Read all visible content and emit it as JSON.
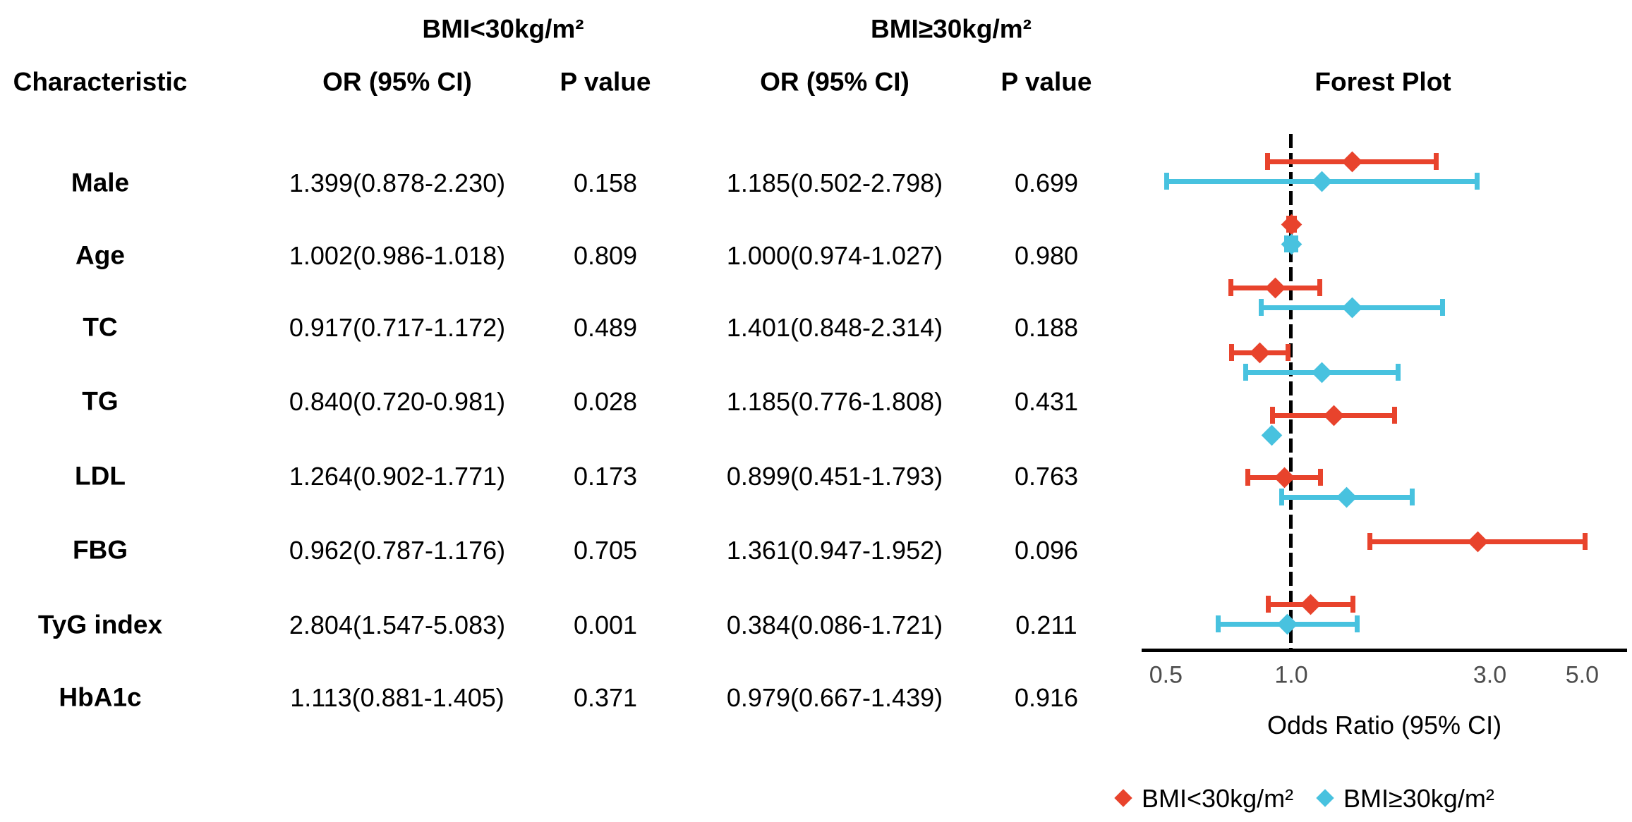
{
  "table": {
    "group_headers": [
      {
        "label": "BMI<30kg/m²"
      },
      {
        "label": "BMI≥30kg/m²"
      }
    ],
    "columns": [
      "Characteristic",
      "OR (95% CI)",
      "P value",
      "OR (95% CI)",
      "P value",
      "Forest Plot"
    ],
    "rows": [
      {
        "characteristic": "Male",
        "or_ci_1": "1.399(0.878-2.230)",
        "p_1": "0.158",
        "or_ci_2": "1.185(0.502-2.798)",
        "p_2": "0.699"
      },
      {
        "characteristic": "Age",
        "or_ci_1": "1.002(0.986-1.018)",
        "p_1": "0.809",
        "or_ci_2": "1.000(0.974-1.027)",
        "p_2": "0.980"
      },
      {
        "characteristic": "TC",
        "or_ci_1": "0.917(0.717-1.172)",
        "p_1": "0.489",
        "or_ci_2": "1.401(0.848-2.314)",
        "p_2": "0.188"
      },
      {
        "characteristic": "TG",
        "or_ci_1": "0.840(0.720-0.981)",
        "p_1": "0.028",
        "or_ci_2": "1.185(0.776-1.808)",
        "p_2": "0.431"
      },
      {
        "characteristic": "LDL",
        "or_ci_1": "1.264(0.902-1.771)",
        "p_1": "0.173",
        "or_ci_2": "0.899(0.451-1.793)",
        "p_2": "0.763"
      },
      {
        "characteristic": "FBG",
        "or_ci_1": "0.962(0.787-1.176)",
        "p_1": "0.705",
        "or_ci_2": "1.361(0.947-1.952)",
        "p_2": "0.096"
      },
      {
        "characteristic": "TyG index",
        "or_ci_1": "2.804(1.547-5.083)",
        "p_1": "0.001",
        "or_ci_2": "0.384(0.086-1.721)",
        "p_2": "0.211"
      },
      {
        "characteristic": "HbA1c",
        "or_ci_1": "1.113(0.881-1.405)",
        "p_1": "0.371",
        "or_ci_2": "0.979(0.667-1.439)",
        "p_2": "0.916"
      }
    ]
  },
  "chart_data": {
    "type": "scatter",
    "subtype": "forest-plot",
    "title": "Forest Plot",
    "categories": [
      "Male",
      "Age",
      "TC",
      "TG",
      "LDL",
      "FBG",
      "TyG index",
      "HbA1c"
    ],
    "x_axis": {
      "label": "Odds Ratio (95% CI)",
      "scale": "log",
      "ticks": [
        0.5,
        1.0,
        3.0,
        5.0
      ],
      "tick_labels": [
        "0.5",
        "1.0",
        "3.0",
        "5.0"
      ],
      "range": [
        0.44,
        6.3
      ],
      "reference_line": 1.0,
      "tick_color": "#4d4d4d"
    },
    "series": [
      {
        "name": "BMI<30kg/m²",
        "color": "#E8432C",
        "points": [
          {
            "label": "Male",
            "or": 1.399,
            "lo": 0.878,
            "hi": 2.23
          },
          {
            "label": "Age",
            "or": 1.002,
            "lo": 0.986,
            "hi": 1.018
          },
          {
            "label": "TC",
            "or": 0.917,
            "lo": 0.717,
            "hi": 1.172
          },
          {
            "label": "TG",
            "or": 0.84,
            "lo": 0.72,
            "hi": 0.981
          },
          {
            "label": "LDL",
            "or": 1.264,
            "lo": 0.902,
            "hi": 1.771
          },
          {
            "label": "FBG",
            "or": 0.962,
            "lo": 0.787,
            "hi": 1.176
          },
          {
            "label": "TyG index",
            "or": 2.804,
            "lo": 1.547,
            "hi": 5.083
          },
          {
            "label": "HbA1c",
            "or": 1.113,
            "lo": 0.881,
            "hi": 1.405
          }
        ]
      },
      {
        "name": "BMI≥30kg/m²",
        "color": "#48C2DF",
        "points": [
          {
            "label": "Male",
            "or": 1.185,
            "lo": 0.502,
            "hi": 2.798
          },
          {
            "label": "Age",
            "or": 1.0,
            "lo": 0.974,
            "hi": 1.027
          },
          {
            "label": "TC",
            "or": 1.401,
            "lo": 0.848,
            "hi": 2.314
          },
          {
            "label": "TG",
            "or": 1.185,
            "lo": 0.776,
            "hi": 1.808
          },
          {
            "label": "LDL",
            "or": 0.899,
            "lo": 0.451,
            "hi": 1.793,
            "ci_visible": false
          },
          {
            "label": "FBG",
            "or": 1.361,
            "lo": 0.947,
            "hi": 1.952
          },
          {
            "label": "TyG index",
            "or": 0.384,
            "lo": 0.086,
            "hi": 1.721,
            "visible": false
          },
          {
            "label": "HbA1c",
            "or": 0.979,
            "lo": 0.667,
            "hi": 1.439
          }
        ]
      }
    ],
    "legend": {
      "position": "bottom-right",
      "entries": [
        "BMI<30kg/m²",
        "BMI≥30kg/m²"
      ]
    }
  }
}
